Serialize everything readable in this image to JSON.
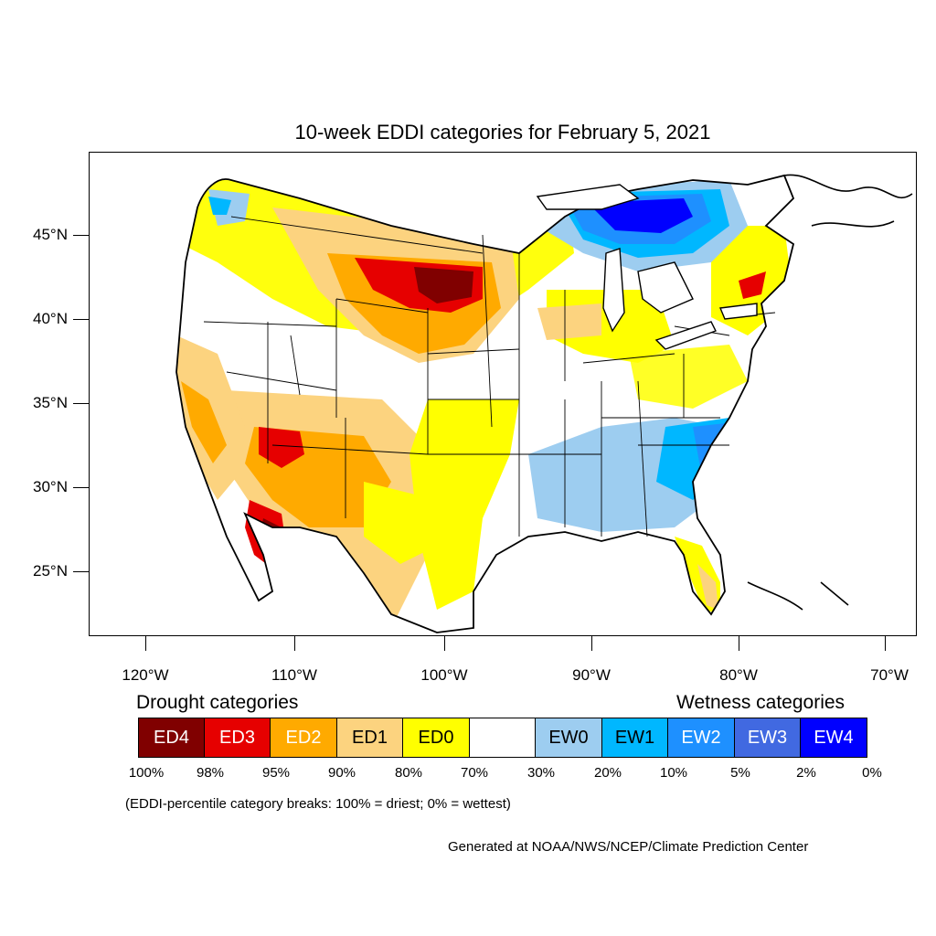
{
  "title": "10-week EDDI categories for February 5, 2021",
  "latitude_labels": [
    "45°N",
    "40°N",
    "35°N",
    "30°N",
    "25°N"
  ],
  "longitude_labels": [
    "120°W",
    "110°W",
    "100°W",
    "90°W",
    "80°W",
    "70°W"
  ],
  "legend": {
    "drought_heading": "Drought categories",
    "wetness_heading": "Wetness categories",
    "categories": [
      {
        "label": "ED4",
        "color": "#800000"
      },
      {
        "label": "ED3",
        "color": "#e60000"
      },
      {
        "label": "ED2",
        "color": "#ffaa00"
      },
      {
        "label": "ED1",
        "color": "#fcd37f"
      },
      {
        "label": "ED0",
        "color": "#ffff00"
      },
      {
        "label": "",
        "color": "#ffffff"
      },
      {
        "label": "EW0",
        "color": "#9dcdf0"
      },
      {
        "label": "EW1",
        "color": "#00b7ff"
      },
      {
        "label": "EW2",
        "color": "#1e90ff"
      },
      {
        "label": "EW3",
        "color": "#4169e1"
      },
      {
        "label": "EW4",
        "color": "#0000ff"
      }
    ],
    "percentiles": [
      "100%",
      "98%",
      "95%",
      "90%",
      "80%",
      "70%",
      "30%",
      "20%",
      "10%",
      "5%",
      "2%",
      "0%"
    ]
  },
  "footnote": "(EDDI-percentile category breaks: 100% = driest; 0% = wettest)",
  "credit": "Generated at NOAA/NWS/NCEP/Climate Prediction Center"
}
